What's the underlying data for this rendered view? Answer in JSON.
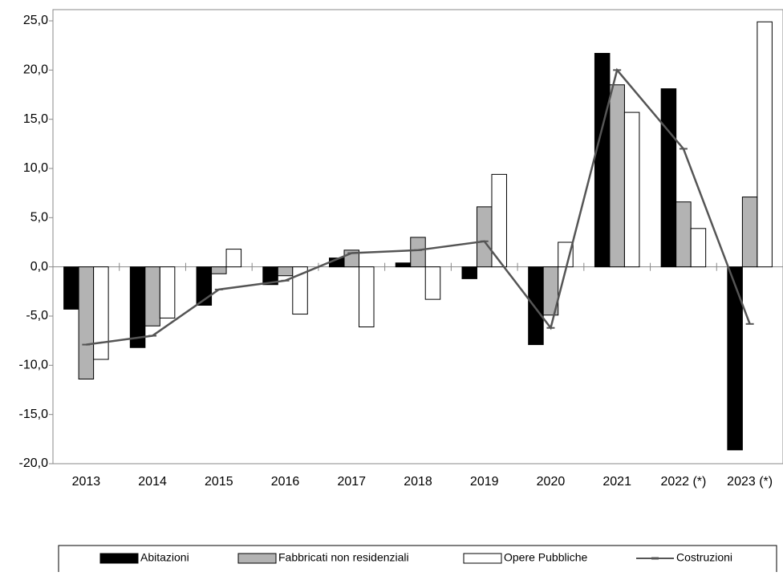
{
  "chart_data": {
    "type": "bar_line",
    "categories": [
      "2013",
      "2014",
      "2015",
      "2016",
      "2017",
      "2018",
      "2019",
      "2020",
      "2021",
      "2022 (*)",
      "2023 (*)"
    ],
    "series": [
      {
        "name": "Abitazioni",
        "type": "bar",
        "color": "#000000",
        "values": [
          -4.3,
          -8.2,
          -3.9,
          -1.8,
          0.9,
          0.4,
          -1.2,
          -7.9,
          21.7,
          18.1,
          -18.6
        ]
      },
      {
        "name": "Fabbricati non residenziali",
        "type": "bar",
        "color": "#b3b3b3",
        "values": [
          -11.4,
          -6.0,
          -0.7,
          -0.9,
          1.7,
          3.0,
          6.1,
          -4.9,
          18.5,
          6.6,
          7.1
        ]
      },
      {
        "name": "Opere Pubbliche",
        "type": "bar",
        "color": "#ffffff",
        "values": [
          -9.4,
          -5.2,
          1.8,
          -4.8,
          -6.1,
          -3.3,
          9.4,
          2.5,
          15.7,
          3.9,
          24.9
        ]
      },
      {
        "name": "Costruzioni",
        "type": "line",
        "color": "#555555",
        "values": [
          -7.9,
          -7.0,
          -2.3,
          -1.4,
          1.4,
          1.7,
          2.6,
          -6.2,
          20.0,
          12.0,
          -5.8
        ]
      }
    ],
    "ylim": [
      -20,
      25
    ],
    "yticks": [
      {
        "value": -20,
        "label": "-20,0"
      },
      {
        "value": -15,
        "label": "-15,0"
      },
      {
        "value": -10,
        "label": "-10,0"
      },
      {
        "value": -5,
        "label": "-5,0"
      },
      {
        "value": 0,
        "label": "0,0"
      },
      {
        "value": 5,
        "label": "5,0"
      },
      {
        "value": 10,
        "label": "10,0"
      },
      {
        "value": 15,
        "label": "15,0"
      },
      {
        "value": 20,
        "label": "20,0"
      },
      {
        "value": 25,
        "label": "25,0"
      }
    ]
  }
}
